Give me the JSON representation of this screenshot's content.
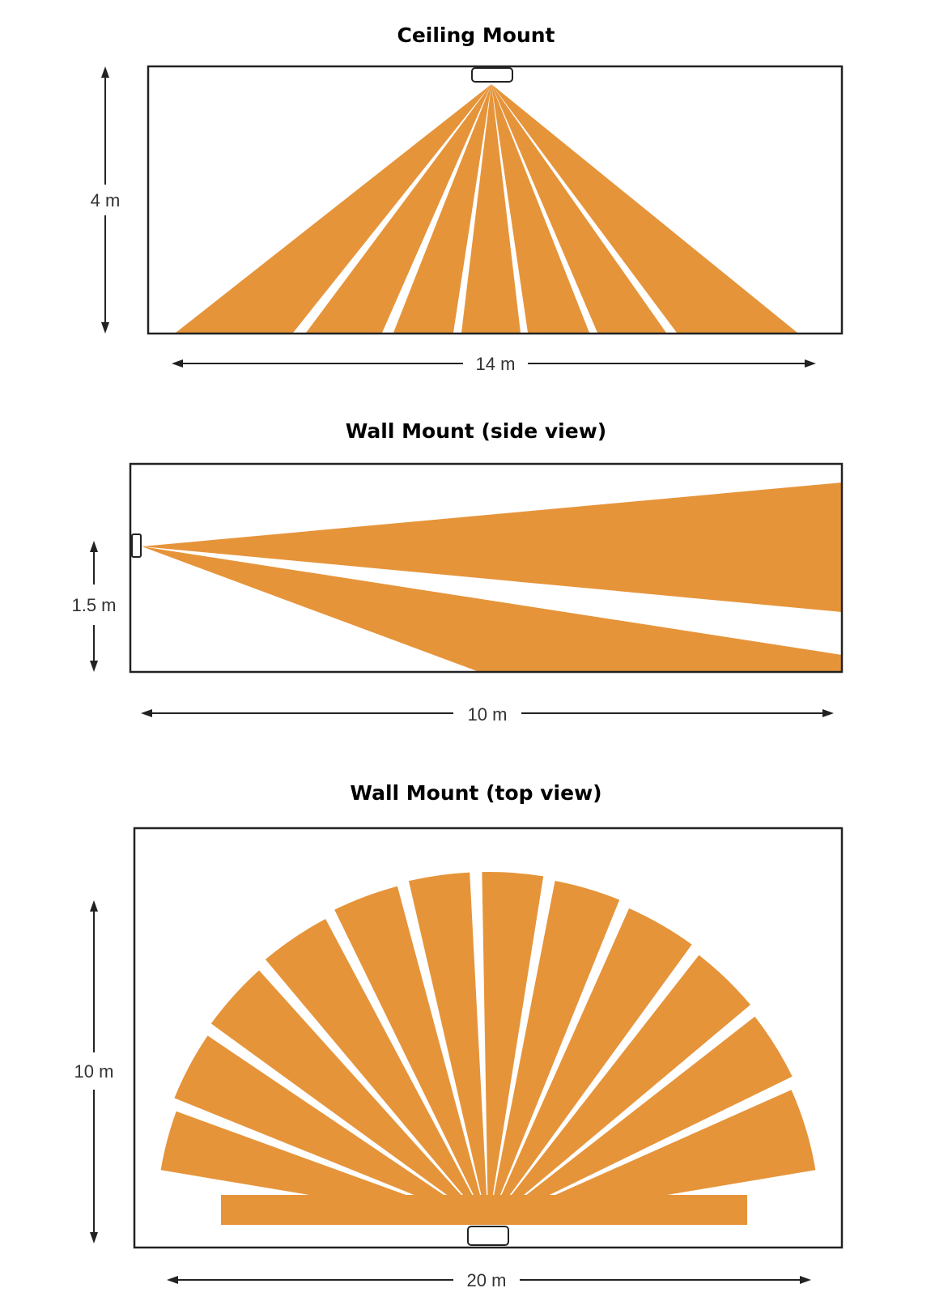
{
  "colors": {
    "zone": "#E6943A",
    "line": "#222222",
    "label": "#333333"
  },
  "ceiling_mount": {
    "title": "Ceiling Mount",
    "height_label": "4 m",
    "width_label": "14 m"
  },
  "wall_side": {
    "title": "Wall Mount (side view)",
    "height_label": "1.5 m",
    "width_label": "10 m"
  },
  "wall_top": {
    "title": "Wall Mount (top view)",
    "height_label": "10 m",
    "width_label": "20 m"
  }
}
